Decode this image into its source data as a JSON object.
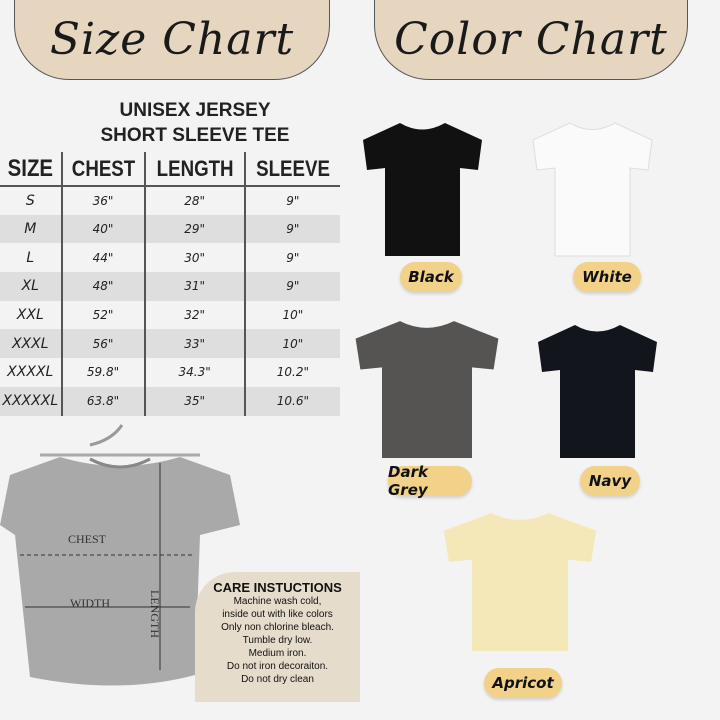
{
  "headers": {
    "size_chart": "Size Chart",
    "color_chart": "Color Chart"
  },
  "product": {
    "line1": "UNISEX JERSEY",
    "line2": "SHORT SLEEVE TEE"
  },
  "table": {
    "columns": [
      "SIZE",
      "CHEST",
      "LENGTH",
      "SLEEVE"
    ],
    "rows": [
      [
        "S",
        "36\"",
        "28\"",
        "9\""
      ],
      [
        "M",
        "40\"",
        "29\"",
        "9\""
      ],
      [
        "L",
        "44\"",
        "30\"",
        "9\""
      ],
      [
        "XL",
        "48\"",
        "31\"",
        "9\""
      ],
      [
        "XXL",
        "52\"",
        "32\"",
        "10\""
      ],
      [
        "XXXL",
        "56\"",
        "33\"",
        "10\""
      ],
      [
        "XXXXL",
        "59.8\"",
        "34.3\"",
        "10.2\""
      ],
      [
        "XXXXXL",
        "63.8\"",
        "35\"",
        "10.6\""
      ]
    ]
  },
  "measure_labels": {
    "chest": "CHEST",
    "width": "WIDTH",
    "length": "LENGTH"
  },
  "colors": [
    {
      "name": "Black",
      "hex": "#111111"
    },
    {
      "name": "White",
      "hex": "#fafafa"
    },
    {
      "name": "Dark Grey",
      "hex": "#555452"
    },
    {
      "name": "Navy",
      "hex": "#13151c"
    },
    {
      "name": "Apricot",
      "hex": "#f4e8b8"
    }
  ],
  "care": {
    "title": "CARE INSTUCTIONS",
    "lines": [
      "Machine wash cold,",
      "inside out with like colors",
      "Only non chlorine bleach.",
      "Tumble dry low.",
      "Medium iron.",
      "Do not iron decoraiton.",
      "Do not dry clean"
    ]
  }
}
